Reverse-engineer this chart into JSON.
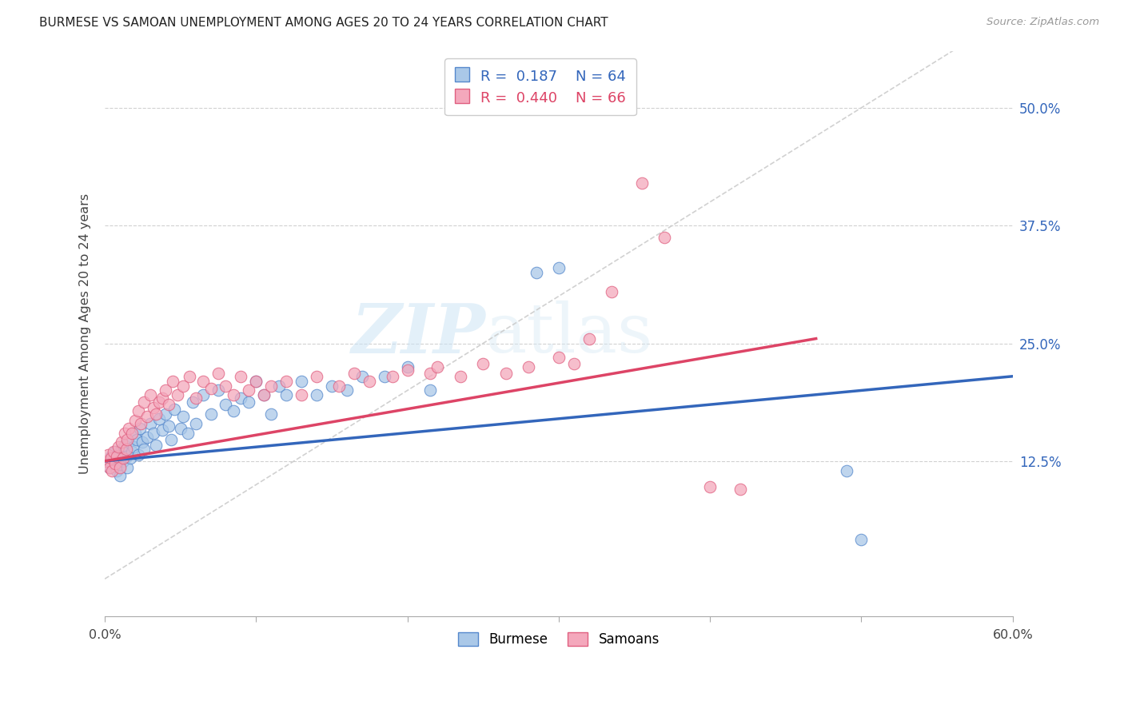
{
  "title": "BURMESE VS SAMOAN UNEMPLOYMENT AMONG AGES 20 TO 24 YEARS CORRELATION CHART",
  "source": "Source: ZipAtlas.com",
  "ylabel": "Unemployment Among Ages 20 to 24 years",
  "xlim": [
    0.0,
    0.6
  ],
  "ylim": [
    -0.04,
    0.56
  ],
  "xticks": [
    0.0,
    0.1,
    0.2,
    0.3,
    0.4,
    0.5,
    0.6
  ],
  "xtick_labels": [
    "0.0%",
    "",
    "",
    "",
    "",
    "",
    "60.0%"
  ],
  "yticks_right": [
    0.125,
    0.25,
    0.375,
    0.5
  ],
  "ytick_labels_right": [
    "12.5%",
    "25.0%",
    "37.5%",
    "50.0%"
  ],
  "background_color": "#ffffff",
  "grid_color": "#cccccc",
  "watermark_zip": "ZIP",
  "watermark_atlas": "atlas",
  "burmese_color": "#aac8e8",
  "samoan_color": "#f4a8bc",
  "burmese_edge_color": "#5588cc",
  "samoan_edge_color": "#e06080",
  "burmese_line_color": "#3366bb",
  "samoan_line_color": "#dd4466",
  "ref_line_color": "#cccccc",
  "burmese_R": 0.187,
  "burmese_N": 64,
  "samoan_R": 0.44,
  "samoan_N": 66,
  "burmese_trendline_x": [
    0.0,
    0.6
  ],
  "burmese_trendline_y": [
    0.125,
    0.215
  ],
  "samoan_trendline_x": [
    0.0,
    0.47
  ],
  "samoan_trendline_y": [
    0.125,
    0.255
  ],
  "burmese_x": [
    0.002,
    0.003,
    0.004,
    0.005,
    0.006,
    0.007,
    0.008,
    0.009,
    0.01,
    0.01,
    0.011,
    0.012,
    0.013,
    0.014,
    0.015,
    0.016,
    0.017,
    0.018,
    0.019,
    0.02,
    0.021,
    0.022,
    0.023,
    0.025,
    0.026,
    0.028,
    0.03,
    0.032,
    0.034,
    0.036,
    0.038,
    0.04,
    0.042,
    0.044,
    0.046,
    0.05,
    0.052,
    0.055,
    0.058,
    0.06,
    0.065,
    0.07,
    0.075,
    0.08,
    0.085,
    0.09,
    0.095,
    0.1,
    0.105,
    0.11,
    0.115,
    0.12,
    0.13,
    0.14,
    0.15,
    0.16,
    0.17,
    0.185,
    0.2,
    0.215,
    0.285,
    0.3,
    0.49,
    0.5
  ],
  "burmese_y": [
    0.125,
    0.118,
    0.13,
    0.122,
    0.128,
    0.135,
    0.115,
    0.132,
    0.12,
    0.11,
    0.138,
    0.125,
    0.142,
    0.13,
    0.118,
    0.145,
    0.128,
    0.135,
    0.14,
    0.155,
    0.148,
    0.132,
    0.16,
    0.145,
    0.138,
    0.15,
    0.165,
    0.155,
    0.142,
    0.17,
    0.158,
    0.175,
    0.162,
    0.148,
    0.18,
    0.16,
    0.172,
    0.155,
    0.188,
    0.165,
    0.195,
    0.175,
    0.2,
    0.185,
    0.178,
    0.192,
    0.188,
    0.21,
    0.195,
    0.175,
    0.205,
    0.195,
    0.21,
    0.195,
    0.205,
    0.2,
    0.215,
    0.215,
    0.225,
    0.2,
    0.325,
    0.33,
    0.115,
    0.042
  ],
  "samoan_x": [
    0.001,
    0.002,
    0.003,
    0.004,
    0.005,
    0.006,
    0.007,
    0.008,
    0.009,
    0.01,
    0.011,
    0.012,
    0.013,
    0.014,
    0.015,
    0.016,
    0.018,
    0.02,
    0.022,
    0.024,
    0.026,
    0.028,
    0.03,
    0.032,
    0.034,
    0.036,
    0.038,
    0.04,
    0.042,
    0.045,
    0.048,
    0.052,
    0.056,
    0.06,
    0.065,
    0.07,
    0.075,
    0.08,
    0.085,
    0.09,
    0.095,
    0.1,
    0.105,
    0.11,
    0.12,
    0.13,
    0.14,
    0.155,
    0.165,
    0.175,
    0.19,
    0.2,
    0.215,
    0.22,
    0.235,
    0.25,
    0.265,
    0.28,
    0.3,
    0.31,
    0.32,
    0.335,
    0.355,
    0.37,
    0.4,
    0.42
  ],
  "samoan_y": [
    0.125,
    0.132,
    0.118,
    0.128,
    0.115,
    0.135,
    0.122,
    0.13,
    0.14,
    0.118,
    0.145,
    0.128,
    0.155,
    0.138,
    0.148,
    0.16,
    0.155,
    0.168,
    0.178,
    0.165,
    0.188,
    0.172,
    0.195,
    0.182,
    0.175,
    0.188,
    0.192,
    0.2,
    0.185,
    0.21,
    0.195,
    0.205,
    0.215,
    0.192,
    0.21,
    0.202,
    0.218,
    0.205,
    0.195,
    0.215,
    0.2,
    0.21,
    0.195,
    0.205,
    0.21,
    0.195,
    0.215,
    0.205,
    0.218,
    0.21,
    0.215,
    0.222,
    0.218,
    0.225,
    0.215,
    0.228,
    0.218,
    0.225,
    0.235,
    0.228,
    0.255,
    0.305,
    0.42,
    0.362,
    0.098,
    0.095
  ]
}
